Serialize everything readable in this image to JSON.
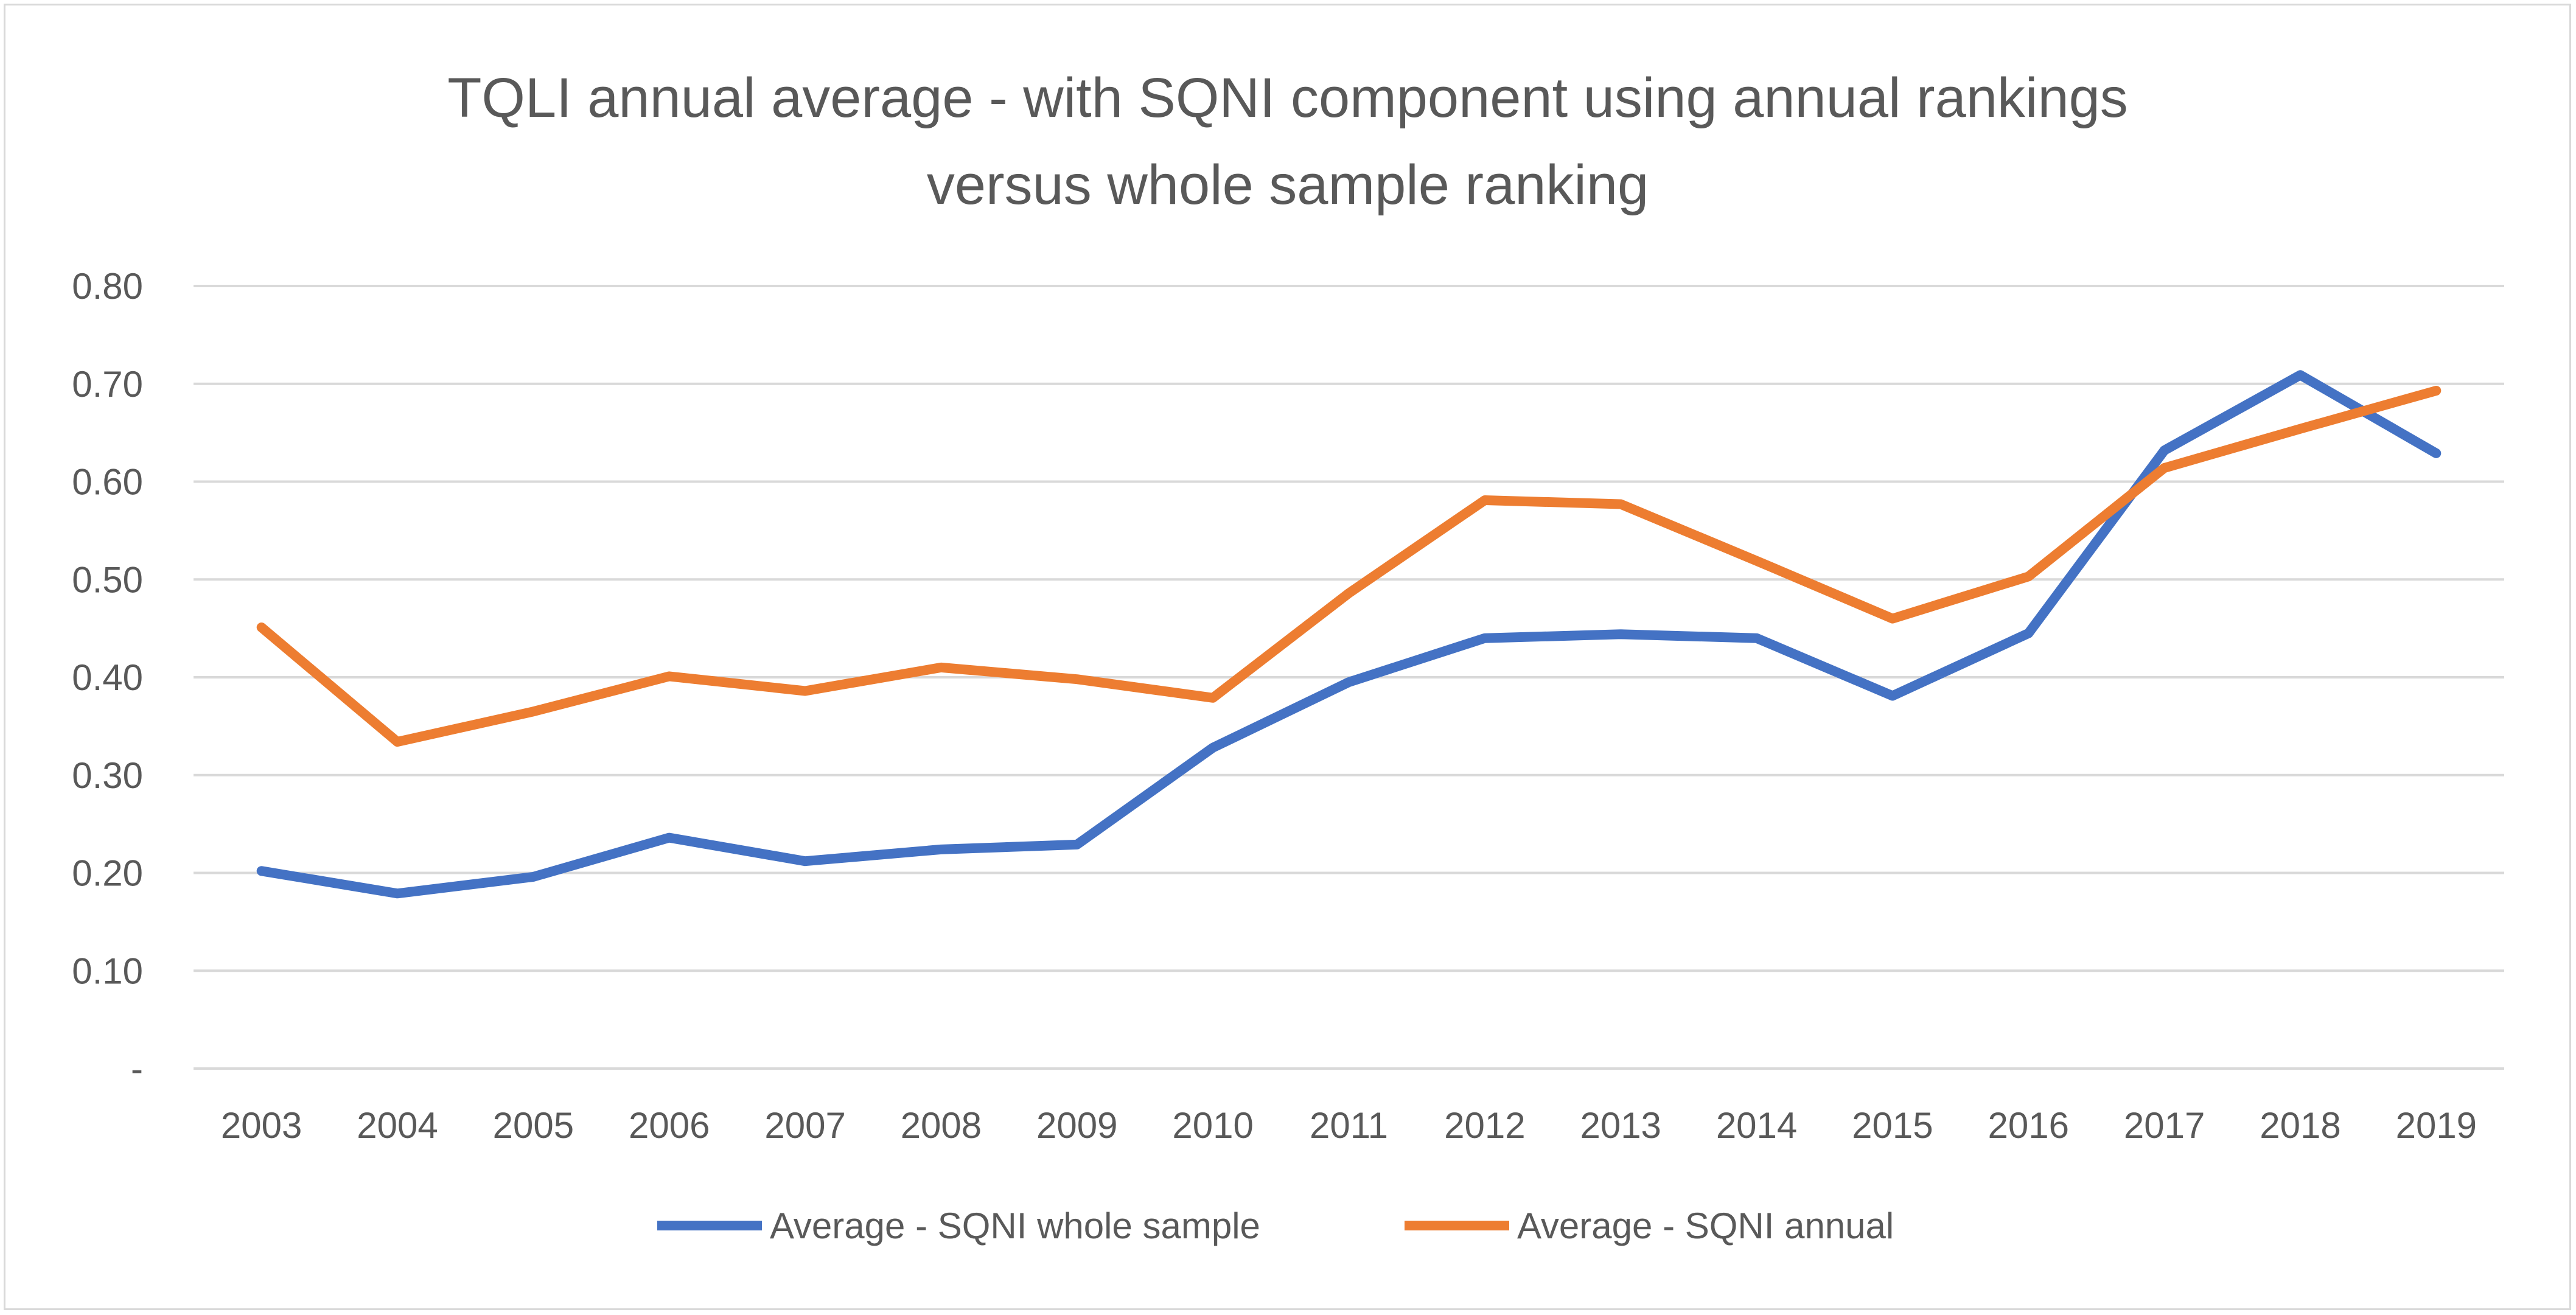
{
  "chart_data": {
    "type": "line",
    "title_lines": [
      "TQLI annual average - with SQNI component using annual rankings",
      "versus whole sample ranking"
    ],
    "xlabel": "",
    "ylabel": "",
    "x": [
      "2003",
      "2004",
      "2005",
      "2006",
      "2007",
      "2008",
      "2009",
      "2010",
      "2011",
      "2012",
      "2013",
      "2014",
      "2015",
      "2016",
      "2017",
      "2018",
      "2019"
    ],
    "ylim": [
      0,
      0.8
    ],
    "yticks": [
      0,
      0.1,
      0.2,
      0.3,
      0.4,
      0.5,
      0.6,
      0.7,
      0.8
    ],
    "ytick_labels": [
      "-",
      "0.10",
      "0.20",
      "0.30",
      "0.40",
      "0.50",
      "0.60",
      "0.70",
      "0.80"
    ],
    "grid": true,
    "legend_position": "bottom",
    "series": [
      {
        "name": "Average - SQNI whole sample",
        "color": "#4472c4",
        "values": [
          0.202,
          0.179,
          0.196,
          0.236,
          0.212,
          0.224,
          0.229,
          0.328,
          0.395,
          0.44,
          0.444,
          0.44,
          0.381,
          0.445,
          0.632,
          0.709,
          0.629
        ]
      },
      {
        "name": "Average - SQNI annual",
        "color": "#ed7d31",
        "values": [
          0.451,
          0.334,
          0.365,
          0.401,
          0.386,
          0.41,
          0.398,
          0.379,
          0.486,
          0.581,
          0.577,
          0.519,
          0.46,
          0.503,
          0.614,
          0.654,
          0.693
        ]
      }
    ]
  }
}
